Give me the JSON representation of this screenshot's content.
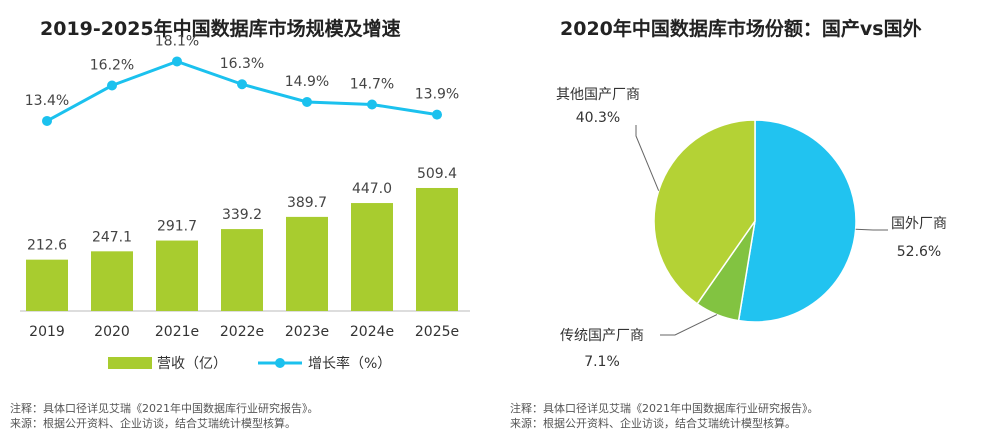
{
  "left": {
    "title": "2019-2025年中国数据库市场规模及增速",
    "notes": [
      "注释：具体口径详见艾瑞《2021年中国数据库行业研究报告》。",
      "来源：根据公开资料、企业访谈，结合艾瑞统计模型核算。"
    ]
  },
  "right": {
    "title": "2020年中国数据库市场份额：国产vs国外",
    "notes": [
      "注释：具体口径详见艾瑞《2021年中国数据库行业研究报告》。",
      "来源：根据公开资料、企业访谈，结合艾瑞统计模型核算。"
    ]
  },
  "colors": {
    "bar": "#a8cc2f",
    "line": "#1bc1ee",
    "foreign": "#21c3f0",
    "other_domestic": "#b4d235",
    "traditional": "#82c341"
  },
  "chart_data": [
    {
      "type": "bar",
      "title": "2019-2025年中国数据库市场规模及增速",
      "categories": [
        "2019",
        "2020",
        "2021e",
        "2022e",
        "2023e",
        "2024e",
        "2025e"
      ],
      "series": [
        {
          "name": "营收（亿）",
          "type": "bar",
          "values": [
            212.6,
            247.1,
            291.7,
            339.2,
            389.7,
            447.0,
            509.4
          ],
          "labels": [
            "212.6",
            "247.1",
            "291.7",
            "339.2",
            "389.7",
            "447.0",
            "509.4"
          ]
        },
        {
          "name": "增长率（%）",
          "type": "line",
          "values": [
            13.4,
            16.2,
            18.1,
            16.3,
            14.9,
            14.7,
            13.9
          ],
          "labels": [
            "13.4%",
            "16.2%",
            "18.1%",
            "16.3%",
            "14.9%",
            "14.7%",
            "13.9%"
          ]
        }
      ],
      "legend": [
        "营收（亿）",
        "增长率（%）"
      ],
      "legend_position": "bottom"
    },
    {
      "type": "pie",
      "title": "2020年中国数据库市场份额：国产vs国外",
      "slices": [
        {
          "label": "国外厂商",
          "value": 52.6,
          "pct": "52.6%"
        },
        {
          "label": "传统国产厂商",
          "value": 7.1,
          "pct": "7.1%"
        },
        {
          "label": "其他国产厂商",
          "value": 40.3,
          "pct": "40.3%"
        }
      ]
    }
  ]
}
